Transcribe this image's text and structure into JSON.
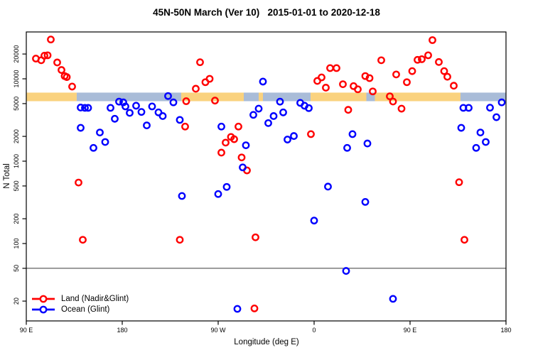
{
  "chart_data": {
    "type": "scatter",
    "title": "45N-50N March (Ver 10)   2015-01-01 to 2020-12-18",
    "xlabel": "Longitude (deg E)",
    "ylabel": "N Total",
    "x_axis": {
      "note": "longitude wraps eastward starting at 90E; values stored as unwrapped degrees 90-540",
      "range": [
        90,
        540
      ],
      "ticks": [
        {
          "pos": 90,
          "label": "90 E"
        },
        {
          "pos": 180,
          "label": "180"
        },
        {
          "pos": 270,
          "label": "90 W"
        },
        {
          "pos": 360,
          "label": "0"
        },
        {
          "pos": 450,
          "label": "90 E"
        },
        {
          "pos": 540,
          "label": "180"
        }
      ]
    },
    "y_axis": {
      "scale": "log",
      "range": [
        14,
        33000
      ],
      "ticks": [
        20,
        50,
        100,
        200,
        500,
        1000,
        2000,
        5000,
        10000,
        20000
      ]
    },
    "reference_line_N": 50,
    "coast_band": {
      "N_top": 6800,
      "N_bottom": 5350,
      "land_color": "#FAD27E",
      "ocean_color": "#A9BCD8",
      "segments": [
        {
          "surface": "land",
          "from": 90,
          "to": 137.3
        },
        {
          "surface": "ocean",
          "from": 137.3,
          "to": 235.3
        },
        {
          "surface": "land",
          "from": 235.3,
          "to": 294
        },
        {
          "surface": "ocean",
          "from": 294,
          "to": 308
        },
        {
          "surface": "land",
          "from": 308,
          "to": 312
        },
        {
          "surface": "ocean",
          "from": 312,
          "to": 356.7
        },
        {
          "surface": "land",
          "from": 356.7,
          "to": 409
        },
        {
          "surface": "ocean",
          "from": 409,
          "to": 417
        },
        {
          "surface": "land",
          "from": 417,
          "to": 497.3
        },
        {
          "surface": "ocean",
          "from": 497.3,
          "to": 540
        }
      ]
    },
    "series": [
      {
        "name": "Land (Nadir&Glint)",
        "color": "#FF0000",
        "points": [
          [
            113,
            30000
          ],
          [
            99,
            17600
          ],
          [
            104,
            16800
          ],
          [
            107,
            19100
          ],
          [
            110,
            19300
          ],
          [
            119,
            15800
          ],
          [
            123,
            12800
          ],
          [
            126,
            10800
          ],
          [
            128,
            10500
          ],
          [
            133,
            8050
          ],
          [
            139,
            550
          ],
          [
            143,
            111
          ],
          [
            234,
            111
          ],
          [
            239,
            2630
          ],
          [
            240,
            5350
          ],
          [
            253,
            15900
          ],
          [
            258,
            9100
          ],
          [
            262,
            10000
          ],
          [
            249,
            7580
          ],
          [
            267,
            5440
          ],
          [
            289,
            2630
          ],
          [
            282,
            1970
          ],
          [
            285,
            1850
          ],
          [
            277,
            1680
          ],
          [
            273,
            1270
          ],
          [
            292,
            1110
          ],
          [
            297,
            772
          ],
          [
            305,
            119
          ],
          [
            304,
            16.3
          ],
          [
            357,
            2130
          ],
          [
            363,
            9430
          ],
          [
            367,
            10400
          ],
          [
            371,
            7810
          ],
          [
            375,
            13500
          ],
          [
            381,
            13500
          ],
          [
            387,
            8600
          ],
          [
            392,
            4200
          ],
          [
            397,
            8150
          ],
          [
            401,
            7460
          ],
          [
            408,
            10800
          ],
          [
            412,
            10200
          ],
          [
            415,
            7030
          ],
          [
            423,
            16800
          ],
          [
            431,
            6130
          ],
          [
            434,
            5300
          ],
          [
            437,
            11300
          ],
          [
            442,
            4340
          ],
          [
            447,
            9100
          ],
          [
            452,
            12400
          ],
          [
            457,
            17000
          ],
          [
            461,
            17300
          ],
          [
            467,
            19300
          ],
          [
            471,
            29500
          ],
          [
            477,
            16000
          ],
          [
            482,
            12400
          ],
          [
            485,
            10600
          ],
          [
            491,
            8250
          ],
          [
            496,
            555
          ],
          [
            501,
            111
          ]
        ]
      },
      {
        "name": "Ocean (Glint)",
        "color": "#0000FF",
        "points": [
          [
            141,
            4480
          ],
          [
            145,
            4440
          ],
          [
            148,
            4440
          ],
          [
            141,
            2540
          ],
          [
            153,
            1450
          ],
          [
            159,
            2230
          ],
          [
            164,
            1710
          ],
          [
            169,
            4440
          ],
          [
            173,
            3270
          ],
          [
            177,
            5280
          ],
          [
            181,
            5180
          ],
          [
            183,
            4620
          ],
          [
            187,
            3860
          ],
          [
            193,
            4710
          ],
          [
            198,
            3960
          ],
          [
            203,
            2720
          ],
          [
            208,
            4620
          ],
          [
            214,
            3910
          ],
          [
            218,
            3530
          ],
          [
            223,
            6180
          ],
          [
            228,
            5180
          ],
          [
            234,
            3170
          ],
          [
            236,
            378
          ],
          [
            270,
            399
          ],
          [
            278,
            487
          ],
          [
            273,
            2630
          ],
          [
            288,
            16.1
          ],
          [
            296,
            1560
          ],
          [
            293,
            840
          ],
          [
            303,
            3650
          ],
          [
            308,
            4340
          ],
          [
            312,
            9250
          ],
          [
            317,
            2900
          ],
          [
            322,
            3530
          ],
          [
            328,
            5280
          ],
          [
            331,
            3910
          ],
          [
            335,
            1830
          ],
          [
            341,
            2020
          ],
          [
            347,
            5100
          ],
          [
            351,
            4710
          ],
          [
            355,
            4410
          ],
          [
            360,
            190
          ],
          [
            373,
            491
          ],
          [
            390,
            46.5
          ],
          [
            391,
            1450
          ],
          [
            396,
            2130
          ],
          [
            408,
            320
          ],
          [
            410,
            1640
          ],
          [
            434,
            21.3
          ],
          [
            498,
            2540
          ],
          [
            500,
            4440
          ],
          [
            505,
            4440
          ],
          [
            512,
            1450
          ],
          [
            516,
            2230
          ],
          [
            521,
            1710
          ],
          [
            525,
            4460
          ],
          [
            531,
            3420
          ],
          [
            536,
            5180
          ]
        ]
      }
    ],
    "legend": {
      "position": "bottom-left"
    },
    "grid": false
  }
}
